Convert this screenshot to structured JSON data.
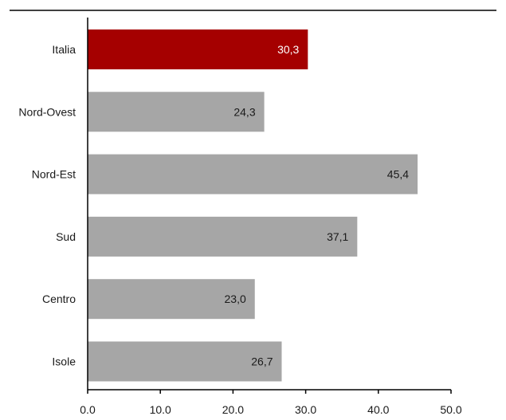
{
  "chart_data": {
    "type": "bar",
    "orientation": "horizontal",
    "categories": [
      "Italia",
      "Nord-Ovest",
      "Nord-Est",
      "Sud",
      "Centro",
      "Isole"
    ],
    "values": [
      30.3,
      24.3,
      45.4,
      37.1,
      23.0,
      26.7
    ],
    "value_labels": [
      "30,3",
      "24,3",
      "45,4",
      "37,1",
      "23,0",
      "26,7"
    ],
    "xlim": [
      0,
      50
    ],
    "x_ticks": [
      0,
      10,
      20,
      30,
      40,
      50
    ],
    "x_tick_labels": [
      "0.0",
      "10.0",
      "20.0",
      "30.0",
      "40.0",
      "50.0"
    ],
    "title": "",
    "xlabel": "",
    "ylabel": "",
    "grid": false,
    "legend": "none",
    "colors": {
      "highlight": "#a50000",
      "default": "#a6a6a6",
      "highlight_label": "#ffffff",
      "default_label": "#1a1a1a"
    },
    "highlight_category": "Italia"
  }
}
